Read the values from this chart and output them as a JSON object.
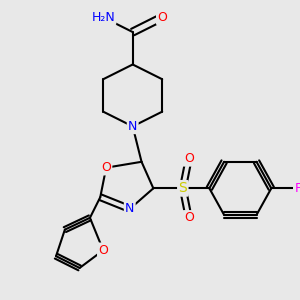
{
  "bg_color": "#e8e8e8",
  "bond_color": "#000000",
  "bond_width": 1.5,
  "atom_colors": {
    "N": "#0000ff",
    "O": "#ff0000",
    "F": "#ff00ff",
    "S": "#cccc00",
    "C": "#000000",
    "H": "#808080"
  },
  "font_size": 9,
  "figsize": [
    3.0,
    3.0
  ],
  "dpi": 100
}
